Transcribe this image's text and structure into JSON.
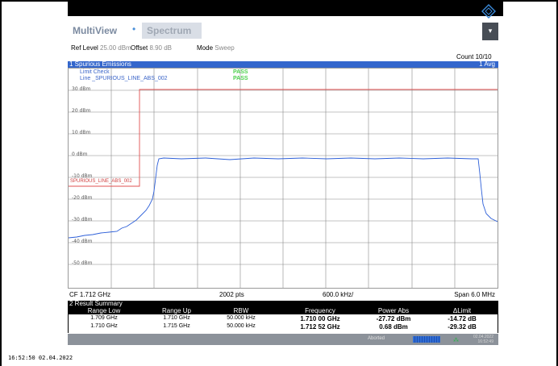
{
  "tabs": {
    "main": "MultiView",
    "star": "•",
    "active": "Spectrum"
  },
  "menu_button": "▾",
  "settings": {
    "ref_level_label": "Ref Level",
    "ref_level_value": "25.00 dBm",
    "offset_label": "Offset",
    "offset_value": "8.90 dB",
    "mode_label": "Mode",
    "mode_value": "Sweep"
  },
  "count": "Count 10/10",
  "plot": {
    "title": "1 Spurious Emissions",
    "trace_mode": "1 Avg",
    "limit_check_label": "Limit Check",
    "limit_check_result": "PASS",
    "line_label": "Line _SPURIOUS_LINE_ABS_002",
    "line_result": "PASS",
    "limit_marker_label": "SPURIOUS_LINE_ABS_002",
    "y_labels": [
      "30 dBm",
      "20 dBm",
      "10 dBm",
      "0 dBm",
      "-10 dBm",
      "-20 dBm",
      "-30 dBm",
      "-40 dBm",
      "-50 dBm"
    ]
  },
  "footer": {
    "cf": "CF 1.712 GHz",
    "pts": "2002 pts",
    "div": "600.0 kHz/",
    "span": "Span 6.0 MHz"
  },
  "result": {
    "title": "2 Result Summary",
    "columns": [
      "Range Low",
      "Range Up",
      "RBW",
      "Frequency",
      "Power Abs",
      "ΔLimit"
    ],
    "rows": [
      [
        "1.709 GHz",
        "1.710 GHz",
        "50.000 kHz",
        "1.710 00 GHz",
        "-27.72 dBm",
        "-14.72 dB"
      ],
      [
        "1.710 GHz",
        "1.715 GHz",
        "50.000 kHz",
        "1.712 52 GHz",
        "0.68 dBm",
        "-29.32 dB"
      ]
    ]
  },
  "status": {
    "aborted": "Aborted",
    "date": "02.04.2022",
    "time": "16:52:49"
  },
  "timestamp": "16:52:50  02.04.2022"
}
